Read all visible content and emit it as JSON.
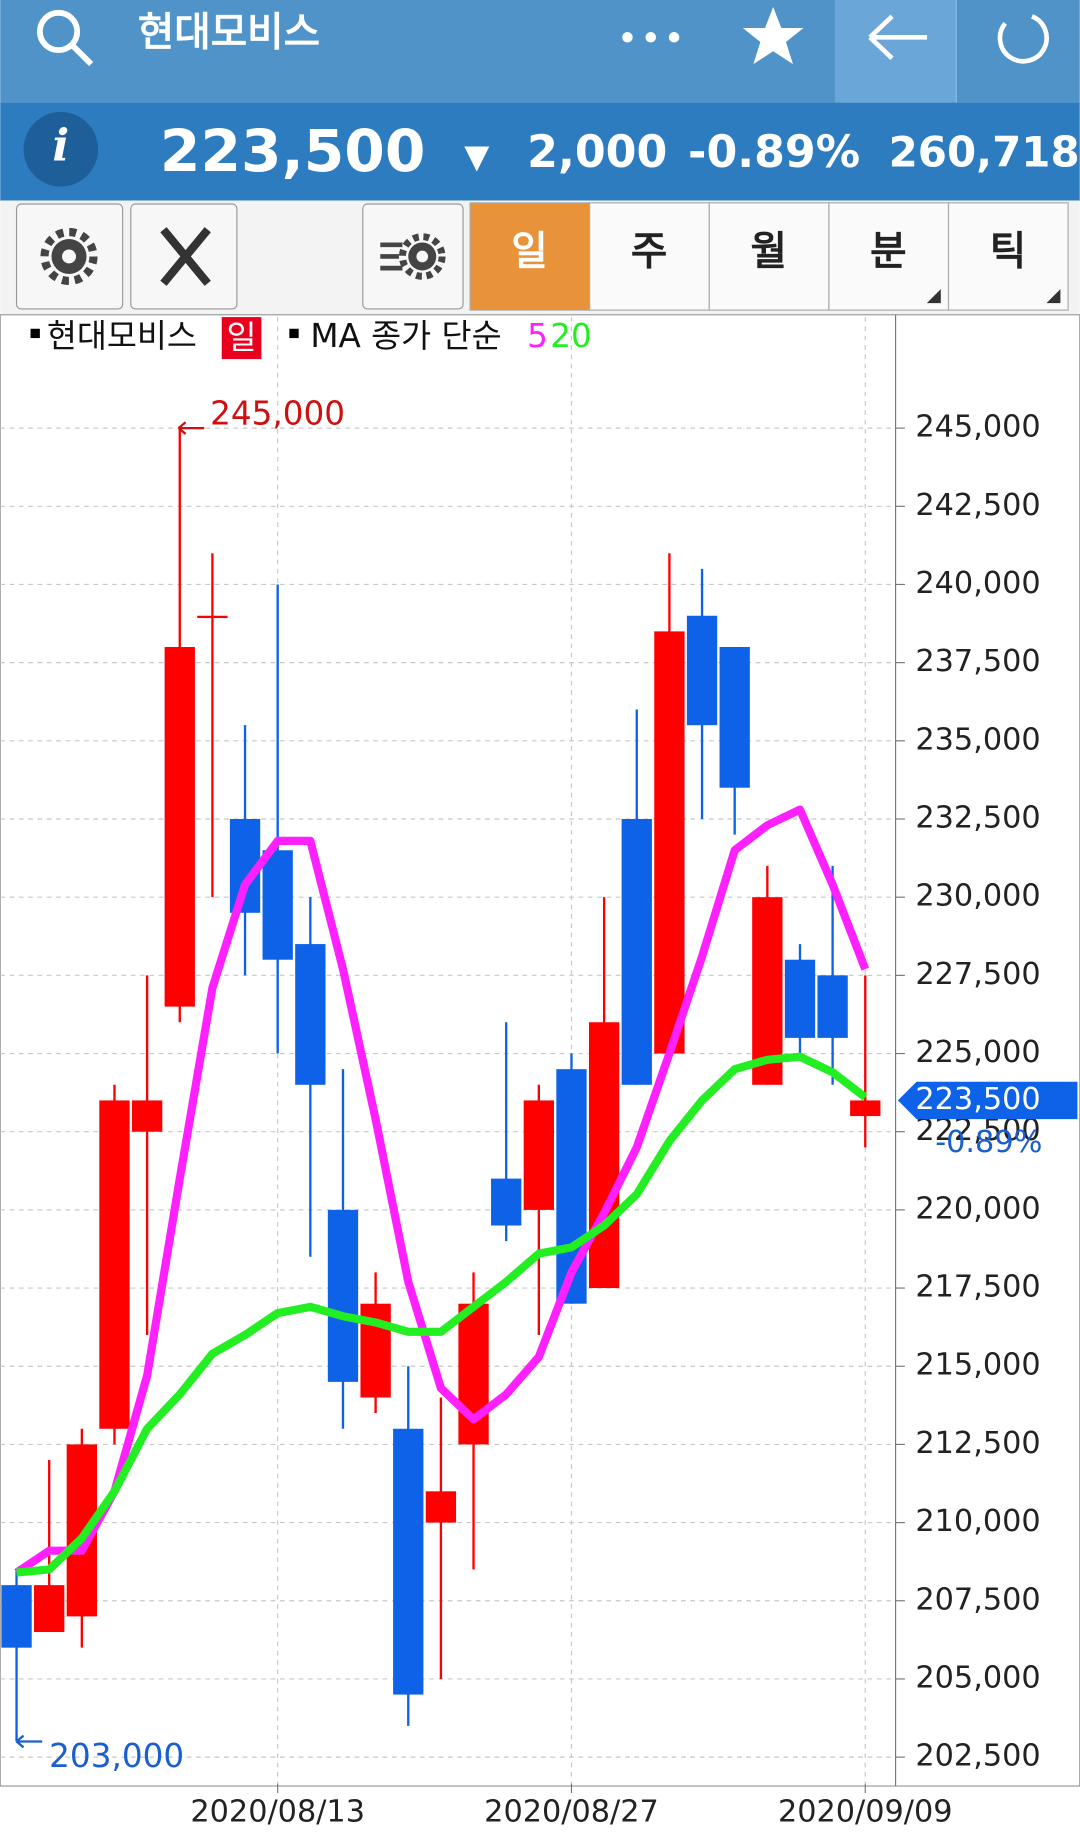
{
  "header": {
    "title": "현대모비스",
    "price": "223,500",
    "change_arrow": "▼",
    "change": "2,000",
    "change_pct": "-0.89%",
    "volume": "260,718"
  },
  "toolbar": {
    "tabs": [
      "일",
      "주",
      "월",
      "분",
      "틱"
    ]
  },
  "chart_data": {
    "type": "candlestick",
    "name": "현대모비스",
    "period": "일",
    "ma_label": "MA 종가 단순",
    "up_color": "#ff0000",
    "down_color": "#0d62e8",
    "categories": [
      null,
      null,
      null,
      null,
      null,
      null,
      null,
      null,
      "2020/08/13",
      null,
      null,
      null,
      null,
      null,
      null,
      null,
      null,
      "2020/08/27",
      null,
      null,
      null,
      null,
      null,
      null,
      null,
      null,
      "2020/09/09"
    ],
    "open": [
      208000,
      206500,
      207000,
      213000,
      222500,
      226500,
      239000,
      232500,
      231500,
      228500,
      220000,
      214000,
      213000,
      210000,
      212500,
      221000,
      220000,
      224500,
      217500,
      232500,
      225000,
      239000,
      238000,
      224000,
      228000,
      227500,
      223000
    ],
    "high": [
      208500,
      212000,
      213000,
      224000,
      227500,
      245000,
      241000,
      235500,
      240000,
      230000,
      224500,
      218000,
      215000,
      214000,
      218000,
      226000,
      224000,
      225000,
      230000,
      236000,
      241000,
      240500,
      238000,
      231000,
      228500,
      231000,
      227500
    ],
    "low": [
      203000,
      206500,
      206000,
      212500,
      216000,
      226000,
      230000,
      227500,
      225000,
      218500,
      213000,
      213500,
      203500,
      205000,
      208500,
      219000,
      216000,
      217000,
      217500,
      224000,
      225000,
      232500,
      232000,
      224000,
      225000,
      224000,
      222000
    ],
    "close": [
      206000,
      208000,
      212500,
      223500,
      223500,
      238000,
      239000,
      229500,
      228000,
      224000,
      214500,
      217000,
      204500,
      211000,
      217000,
      219500,
      223500,
      217000,
      226000,
      224000,
      238500,
      235500,
      233500,
      230000,
      225500,
      225500,
      223500
    ],
    "series": [
      {
        "name": "5",
        "color": "#ff20ff",
        "values": [
          208400,
          209100,
          209100,
          211000,
          214700,
          221000,
          227100,
          230400,
          231800,
          231800,
          227700,
          222900,
          217700,
          214300,
          213300,
          214100,
          215300,
          218000,
          219900,
          222000,
          225000,
          228100,
          231500,
          232300,
          232800,
          230400,
          227700
        ]
      },
      {
        "name": "20",
        "color": "#22ee22",
        "values": [
          208400,
          208500,
          209500,
          211000,
          213000,
          214100,
          215400,
          216000,
          216700,
          216900,
          216600,
          216400,
          216100,
          216100,
          216900,
          217700,
          218600,
          218800,
          219500,
          220500,
          222200,
          223500,
          224500,
          224800,
          224900,
          224400,
          223600
        ]
      }
    ],
    "ylim": [
      201650,
      248550
    ],
    "yticks": [
      {
        "value": 202500,
        "label": "202,500"
      },
      {
        "value": 205000,
        "label": "205,000"
      },
      {
        "value": 207500,
        "label": "207,500"
      },
      {
        "value": 210000,
        "label": "210,000"
      },
      {
        "value": 212500,
        "label": "212,500"
      },
      {
        "value": 215000,
        "label": "215,000"
      },
      {
        "value": 217500,
        "label": "217,500"
      },
      {
        "value": 220000,
        "label": "220,000"
      },
      {
        "value": 222500,
        "label": "222,500"
      },
      {
        "value": 225000,
        "label": "225,000"
      },
      {
        "value": 227500,
        "label": "227,500"
      },
      {
        "value": 230000,
        "label": "230,000"
      },
      {
        "value": 232500,
        "label": "232,500"
      },
      {
        "value": 235000,
        "label": "235,000"
      },
      {
        "value": 237500,
        "label": "237,500"
      },
      {
        "value": 240000,
        "label": "240,000"
      },
      {
        "value": 242500,
        "label": "242,500"
      },
      {
        "value": 245000,
        "label": "245,000"
      }
    ],
    "grid": true,
    "high_marker": {
      "value": 245000,
      "label": "245,000"
    },
    "low_marker": {
      "value": 203000,
      "label": "203,000"
    },
    "current": {
      "value": 223500,
      "label": "223,500"
    },
    "current_change": "-0.89%"
  }
}
